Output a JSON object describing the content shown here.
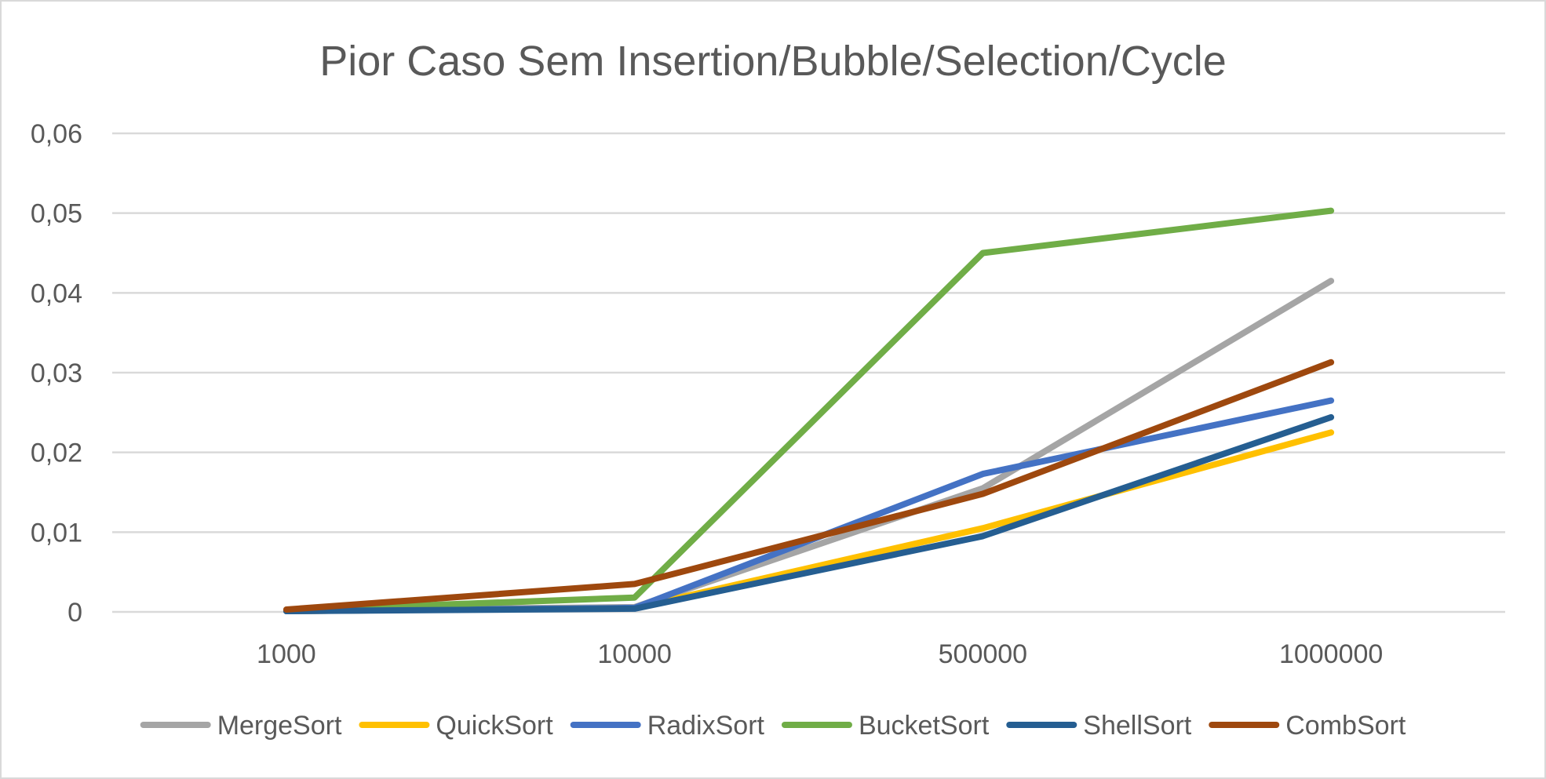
{
  "chart_data": {
    "type": "line",
    "title": "Pior Caso Sem Insertion/Bubble/Selection/Cycle",
    "categories": [
      "1000",
      "10000",
      "500000",
      "1000000"
    ],
    "ylim": [
      0,
      0.06
    ],
    "y_ticks": [
      "0",
      "0,01",
      "0,02",
      "0,03",
      "0,04",
      "0,05",
      "0,06"
    ],
    "y_tick_values": [
      0,
      0.01,
      0.02,
      0.03,
      0.04,
      0.05,
      0.06
    ],
    "grid": true,
    "legend_position": "bottom",
    "series": [
      {
        "name": "MergeSort",
        "color": "#a5a5a5",
        "values": [
          0.0002,
          0.0006,
          0.0155,
          0.0415
        ]
      },
      {
        "name": "QuickSort",
        "color": "#ffc000",
        "values": [
          0.0001,
          0.0005,
          0.0105,
          0.0225
        ]
      },
      {
        "name": "RadixSort",
        "color": "#4472c4",
        "values": [
          0.0001,
          0.0005,
          0.0173,
          0.0265
        ]
      },
      {
        "name": "BucketSort",
        "color": "#70ad47",
        "values": [
          0.0002,
          0.0018,
          0.045,
          0.0503
        ]
      },
      {
        "name": "ShellSort",
        "color": "#255e91",
        "values": [
          0.0001,
          0.0004,
          0.0095,
          0.0244
        ]
      },
      {
        "name": "CombSort",
        "color": "#9e480e",
        "values": [
          0.0003,
          0.0035,
          0.0148,
          0.0313
        ]
      }
    ]
  }
}
